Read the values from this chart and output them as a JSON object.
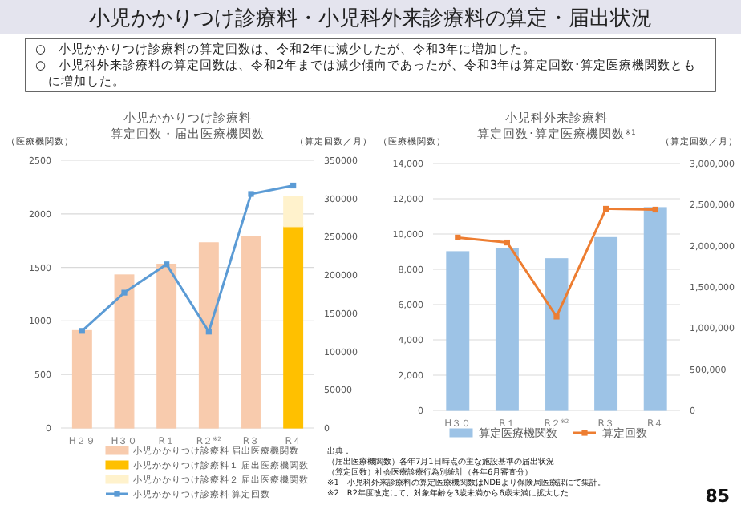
{
  "chart_data": [
    {
      "type": "other",
      "title": "小児かかりつけ診療料・小児科外来診療料の算定・届出状況",
      "annotations": [
        "○　小児かかりつけ診療料の算定回数は、令和2年に減少したが、令和3年に増加した。",
        "○　小児科外来診療料の算定回数は、令和2年までは減少傾向であったが、令和3年は算定回数･算定医療機関数ともに増加した。"
      ]
    },
    {
      "type": "bar",
      "title": "小児かかりつけ診療料算定回数・届出医療機関数",
      "ylabel": "（医療機関数）",
      "y2label": "（算定回数／月）",
      "categories": [
        "H２９",
        "H３０",
        "R１",
        "R２$^{※2}$",
        "R３",
        "R４"
      ],
      "stacked": true,
      "ylim": [
        0,
        2500
      ],
      "yticks": [
        0,
        500,
        1000,
        1500,
        2000,
        2500
      ],
      "y2lim": [
        0,
        350000
      ],
      "y2ticks": [
        0,
        50000,
        100000,
        150000,
        200000,
        250000,
        300000,
        350000
      ],
      "grid": "y",
      "legend": "bottom",
      "marker": "square",
      "series": [
        {
          "name": "小児かかりつけ診療料 届出医療機関数",
          "color": "#f8cbad",
          "values": [
            910,
            1430,
            1530,
            1730,
            1790,
            null
          ]
        },
        {
          "name": "小児かかりつけ診療料１ 届出医療機関数",
          "color": "#ffc000",
          "values": [
            null,
            null,
            null,
            null,
            null,
            1880
          ]
        },
        {
          "name": "小児かかりつけ診療料２ 届出医療機関数",
          "color": "#fff2cc",
          "values": [
            null,
            null,
            null,
            null,
            null,
            280
          ]
        },
        {
          "name": "小児かかりつけ診療料 算定回数",
          "type": "line",
          "axis": "y2",
          "color": "#5b9bd5",
          "values": [
            127000,
            177000,
            214000,
            126000,
            306000,
            317000
          ]
        }
      ]
    },
    {
      "type": "bar",
      "title": "小児科外来診療料算定回数･算定医療機関数$^{※1}$",
      "ylabel": "（医療機関数）",
      "y2label": "（算定回数／月）",
      "categories": [
        "H３０",
        "R１",
        "R２$^{※2}$",
        "R３",
        "R４"
      ],
      "ylim": [
        0,
        14000
      ],
      "yticks": [
        {
          "value": 0,
          "label": "0"
        },
        {
          "value": 2000,
          "label": "2,000"
        },
        {
          "value": 4000,
          "label": "4,000"
        },
        {
          "value": 6000,
          "label": "6,000"
        },
        {
          "value": 8000,
          "label": "8,000"
        },
        {
          "value": 10000,
          "label": "10,000"
        },
        {
          "value": 12000,
          "label": "12,000"
        },
        {
          "value": 14000,
          "label": "14,000"
        }
      ],
      "y2lim": [
        0,
        3000000
      ],
      "y2ticks": [
        {
          "value": 0,
          "label": "0"
        },
        {
          "value": 500000,
          "label": "500,000"
        },
        {
          "value": 1000000,
          "label": "1,000,000"
        },
        {
          "value": 1500000,
          "label": "1,500,000"
        },
        {
          "value": 2000000,
          "label": "2,000,000"
        },
        {
          "value": 2500000,
          "label": "2,500,000"
        },
        {
          "value": 3000000,
          "label": "3,000,000"
        }
      ],
      "grid": "y",
      "legend": "bottom",
      "marker": "square",
      "series": [
        {
          "name": "算定医療機関数",
          "color": "#9dc3e6",
          "values": [
            9000,
            9200,
            8600,
            9800,
            11500
          ]
        },
        {
          "name": "算定回数",
          "type": "line",
          "axis": "y2",
          "color": "#ed7d31",
          "values": [
            2100000,
            2040000,
            1140000,
            2450000,
            2440000
          ]
        }
      ]
    },
    {
      "type": "other",
      "annotations": [
        "出典：",
        "（届出医療機関数）各年7月1日時点の主な施設基準の届出状況",
        "（算定回数）社会医療診療行為別統計（各年6月審査分）",
        "※1　小児科外来診療料の算定医療機関数はNDBより保険局医療課にて集計。",
        "※2　R2年度改定にて、対象年齢を3歳未満から6歳未満に拡大した",
        "85"
      ]
    }
  ]
}
